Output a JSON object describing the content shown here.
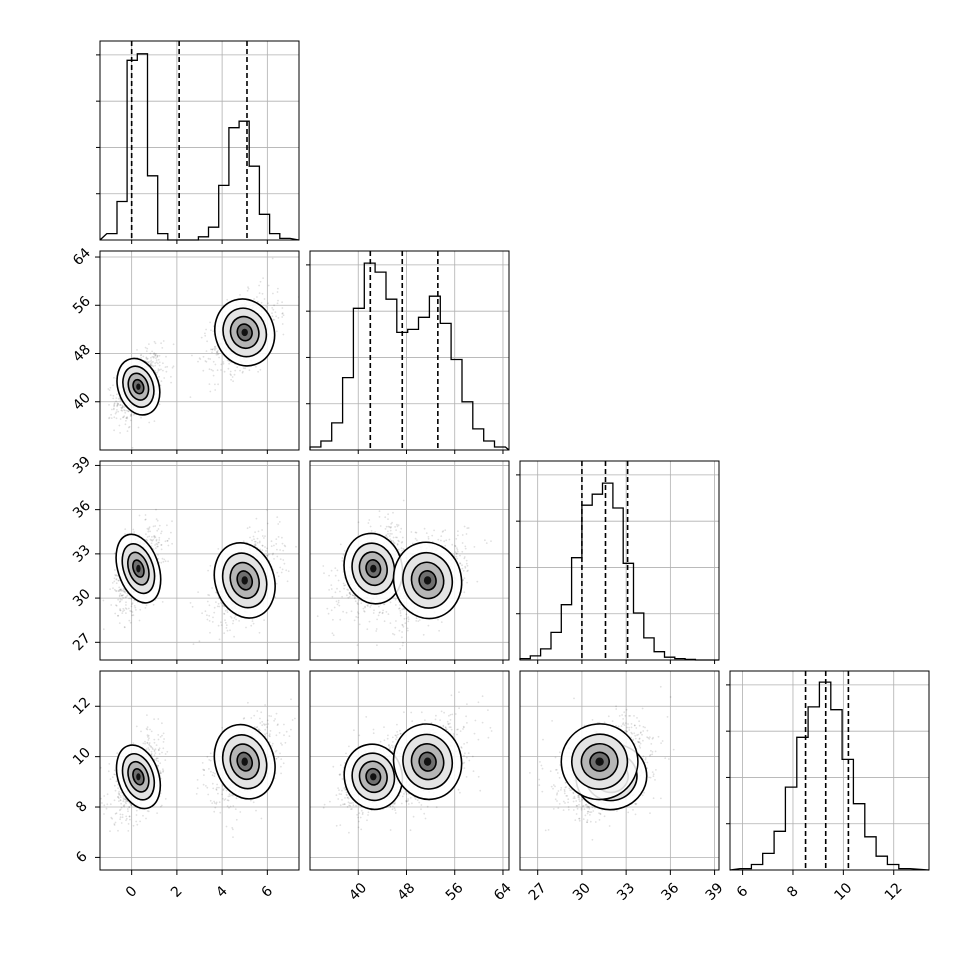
{
  "chart_data": {
    "type": "corner",
    "title": "",
    "variables": [
      {
        "range": [
          -1.4,
          7.4
        ],
        "ticks": [
          0,
          2,
          4,
          6
        ],
        "tick_labels": [
          "0",
          "2",
          "4",
          "6"
        ],
        "quantiles": [
          0.0,
          2.1,
          5.1
        ],
        "hist_bins": [
          -1.1,
          -0.65,
          -0.2,
          0.25,
          0.7,
          1.15,
          1.6,
          2.05,
          2.5,
          2.95,
          3.4,
          3.85,
          4.3,
          4.75,
          5.2,
          5.65,
          6.1,
          6.55,
          7.0
        ],
        "hist_values": [
          2,
          12,
          56,
          58,
          20,
          2,
          0,
          0,
          0,
          1,
          4,
          17,
          35,
          37,
          23,
          8,
          2,
          0.5
        ],
        "hist_max": 62
      },
      {
        "range": [
          32,
          65
        ],
        "ticks": [
          40,
          48,
          56,
          64
        ],
        "tick_labels": [
          "40",
          "48",
          "56",
          "64"
        ],
        "quantiles": [
          42.0,
          47.3,
          53.2
        ],
        "hist_bins": [
          32,
          33.8,
          35.6,
          37.4,
          39.2,
          41,
          42.8,
          44.6,
          46.4,
          48.2,
          50,
          51.8,
          53.6,
          55.4,
          57.2,
          59,
          60.8,
          62.6,
          64.4
        ],
        "hist_values": [
          1,
          3,
          9,
          24,
          47,
          62,
          59,
          50,
          39,
          40,
          44,
          51,
          42,
          30,
          16,
          7,
          3,
          1
        ],
        "hist_max": 66
      },
      {
        "range": [
          25.8,
          39.3
        ],
        "ticks": [
          27,
          30,
          33,
          36,
          39
        ],
        "tick_labels": [
          "27",
          "30",
          "33",
          "36",
          "39"
        ],
        "quantiles": [
          30.0,
          31.6,
          33.1
        ],
        "hist_bins": [
          25.8,
          26.5,
          27.2,
          27.9,
          28.6,
          29.3,
          30.0,
          30.7,
          31.4,
          32.1,
          32.8,
          33.5,
          34.2,
          34.9,
          35.6,
          36.3,
          37.0,
          37.7,
          38.4
        ],
        "hist_values": [
          0.5,
          1.5,
          4,
          10,
          20,
          37,
          56,
          60,
          64,
          55,
          35,
          17,
          8,
          3,
          1,
          0.5,
          0.2,
          0
        ],
        "hist_max": 72
      },
      {
        "range": [
          5.5,
          13.4
        ],
        "ticks": [
          6,
          8,
          10,
          12
        ],
        "tick_labels": [
          "6",
          "8",
          "10",
          "12"
        ],
        "quantiles": [
          8.5,
          9.3,
          10.2
        ],
        "hist_bins": [
          5.9,
          6.35,
          6.8,
          7.25,
          7.7,
          8.15,
          8.6,
          9.05,
          9.5,
          9.95,
          10.4,
          10.85,
          11.3,
          11.75,
          12.2,
          12.65
        ],
        "hist_values": [
          0.5,
          2,
          6,
          14,
          30,
          48,
          59,
          68,
          58,
          40,
          24,
          12,
          5,
          2,
          0.5
        ],
        "hist_max": 72
      }
    ],
    "clusters": [
      {
        "mean": [
          0.3,
          42.5,
          32.0,
          9.2
        ],
        "std": [
          0.45,
          2.4,
          1.2,
          0.65
        ],
        "weight": 0.52
      },
      {
        "mean": [
          5.0,
          51.5,
          31.2,
          9.8
        ],
        "std": [
          0.65,
          2.8,
          1.3,
          0.75
        ],
        "weight": 0.48
      }
    ],
    "grid": true,
    "quantile_style": "dashed"
  }
}
